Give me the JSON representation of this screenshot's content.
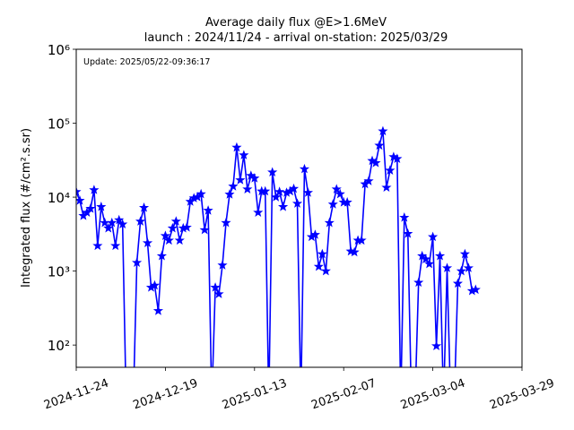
{
  "chart_data": {
    "type": "line",
    "title": "Average daily flux @E>1.6MeV",
    "subtitle": "launch : 2024/11/24 - arrival on-station: 2025/03/29",
    "y_label": "Integrated flux (#/cm².s.sr)",
    "annotation": "Update: 2025/05/22-09:36:17",
    "x": [
      "2024-11-24",
      "2024-11-25",
      "2024-11-26",
      "2024-11-27",
      "2024-11-28",
      "2024-11-29",
      "2024-11-30",
      "2024-12-01",
      "2024-12-02",
      "2024-12-03",
      "2024-12-04",
      "2024-12-05",
      "2024-12-06",
      "2024-12-07",
      "2024-12-08",
      "2024-12-09",
      "2024-12-10",
      "2024-12-11",
      "2024-12-12",
      "2024-12-13",
      "2024-12-14",
      "2024-12-15",
      "2024-12-16",
      "2024-12-17",
      "2024-12-18",
      "2024-12-19",
      "2024-12-20",
      "2024-12-21",
      "2024-12-22",
      "2024-12-23",
      "2024-12-24",
      "2024-12-25",
      "2024-12-26",
      "2024-12-27",
      "2024-12-28",
      "2024-12-29",
      "2024-12-30",
      "2024-12-31",
      "2025-01-01",
      "2025-01-02",
      "2025-01-03",
      "2025-01-04",
      "2025-01-05",
      "2025-01-06",
      "2025-01-07",
      "2025-01-08",
      "2025-01-09",
      "2025-01-10",
      "2025-01-11",
      "2025-01-12",
      "2025-01-13",
      "2025-01-14",
      "2025-01-15",
      "2025-01-16",
      "2025-01-17",
      "2025-01-18",
      "2025-01-19",
      "2025-01-20",
      "2025-01-21",
      "2025-01-22",
      "2025-01-23",
      "2025-01-24",
      "2025-01-25",
      "2025-01-26",
      "2025-01-27",
      "2025-01-28",
      "2025-01-29",
      "2025-01-30",
      "2025-01-31",
      "2025-02-01",
      "2025-02-02",
      "2025-02-03",
      "2025-02-04",
      "2025-02-05",
      "2025-02-06",
      "2025-02-07",
      "2025-02-08",
      "2025-02-09",
      "2025-02-10",
      "2025-02-11",
      "2025-02-12",
      "2025-02-13",
      "2025-02-14",
      "2025-02-15",
      "2025-02-16",
      "2025-02-17",
      "2025-02-18",
      "2025-02-19",
      "2025-02-20",
      "2025-02-21",
      "2025-02-22",
      "2025-02-23",
      "2025-02-24",
      "2025-02-25",
      "2025-02-26",
      "2025-02-27",
      "2025-02-28",
      "2025-03-01",
      "2025-03-02",
      "2025-03-03",
      "2025-03-04",
      "2025-03-05",
      "2025-03-06",
      "2025-03-07",
      "2025-03-08",
      "2025-03-09",
      "2025-03-10",
      "2025-03-11",
      "2025-03-12",
      "2025-03-13",
      "2025-03-14",
      "2025-03-15",
      "2025-03-16"
    ],
    "series": [
      {
        "color": "#0000ff",
        "values": [
          11800,
          9000,
          5600,
          6200,
          7000,
          12500,
          2200,
          7400,
          4500,
          3800,
          4500,
          2200,
          4900,
          4300,
          0,
          0,
          0,
          1300,
          4700,
          7200,
          2400,
          600,
          640,
          290,
          1600,
          3000,
          2600,
          3800,
          4700,
          2600,
          3800,
          3900,
          8700,
          9700,
          10000,
          11000,
          3600,
          6600,
          0,
          600,
          490,
          1200,
          4500,
          10900,
          14000,
          47000,
          17000,
          37000,
          12800,
          19500,
          18000,
          6200,
          12000,
          12000,
          0,
          21700,
          10000,
          11800,
          7400,
          11500,
          12000,
          13000,
          8200,
          0,
          24000,
          11500,
          2900,
          3100,
          1150,
          1700,
          1000,
          4500,
          8000,
          12800,
          11000,
          8500,
          8500,
          1850,
          1800,
          2600,
          2600,
          15000,
          16500,
          31000,
          29000,
          50000,
          78000,
          13500,
          23000,
          35000,
          33000,
          0,
          5300,
          3200,
          0,
          0,
          700,
          1600,
          1450,
          1250,
          2900,
          97,
          1600,
          0,
          1100,
          0,
          0,
          680,
          1000,
          1700,
          1100,
          540,
          560
        ]
      }
    ],
    "xlim": [
      "2024-11-24",
      "2025-03-29"
    ],
    "xticks": [
      "2024-11-24",
      "2024-12-19",
      "2025-01-13",
      "2025-02-07",
      "2025-03-04",
      "2025-03-29"
    ],
    "ylim": [
      50,
      1000000
    ],
    "yticks": [
      {
        "value": 100,
        "label": "10²"
      },
      {
        "value": 1000,
        "label": "10³"
      },
      {
        "value": 10000,
        "label": "10⁴"
      },
      {
        "value": 100000,
        "label": "10⁵"
      },
      {
        "value": 1000000,
        "label": "10⁶"
      }
    ],
    "log_y": true
  }
}
